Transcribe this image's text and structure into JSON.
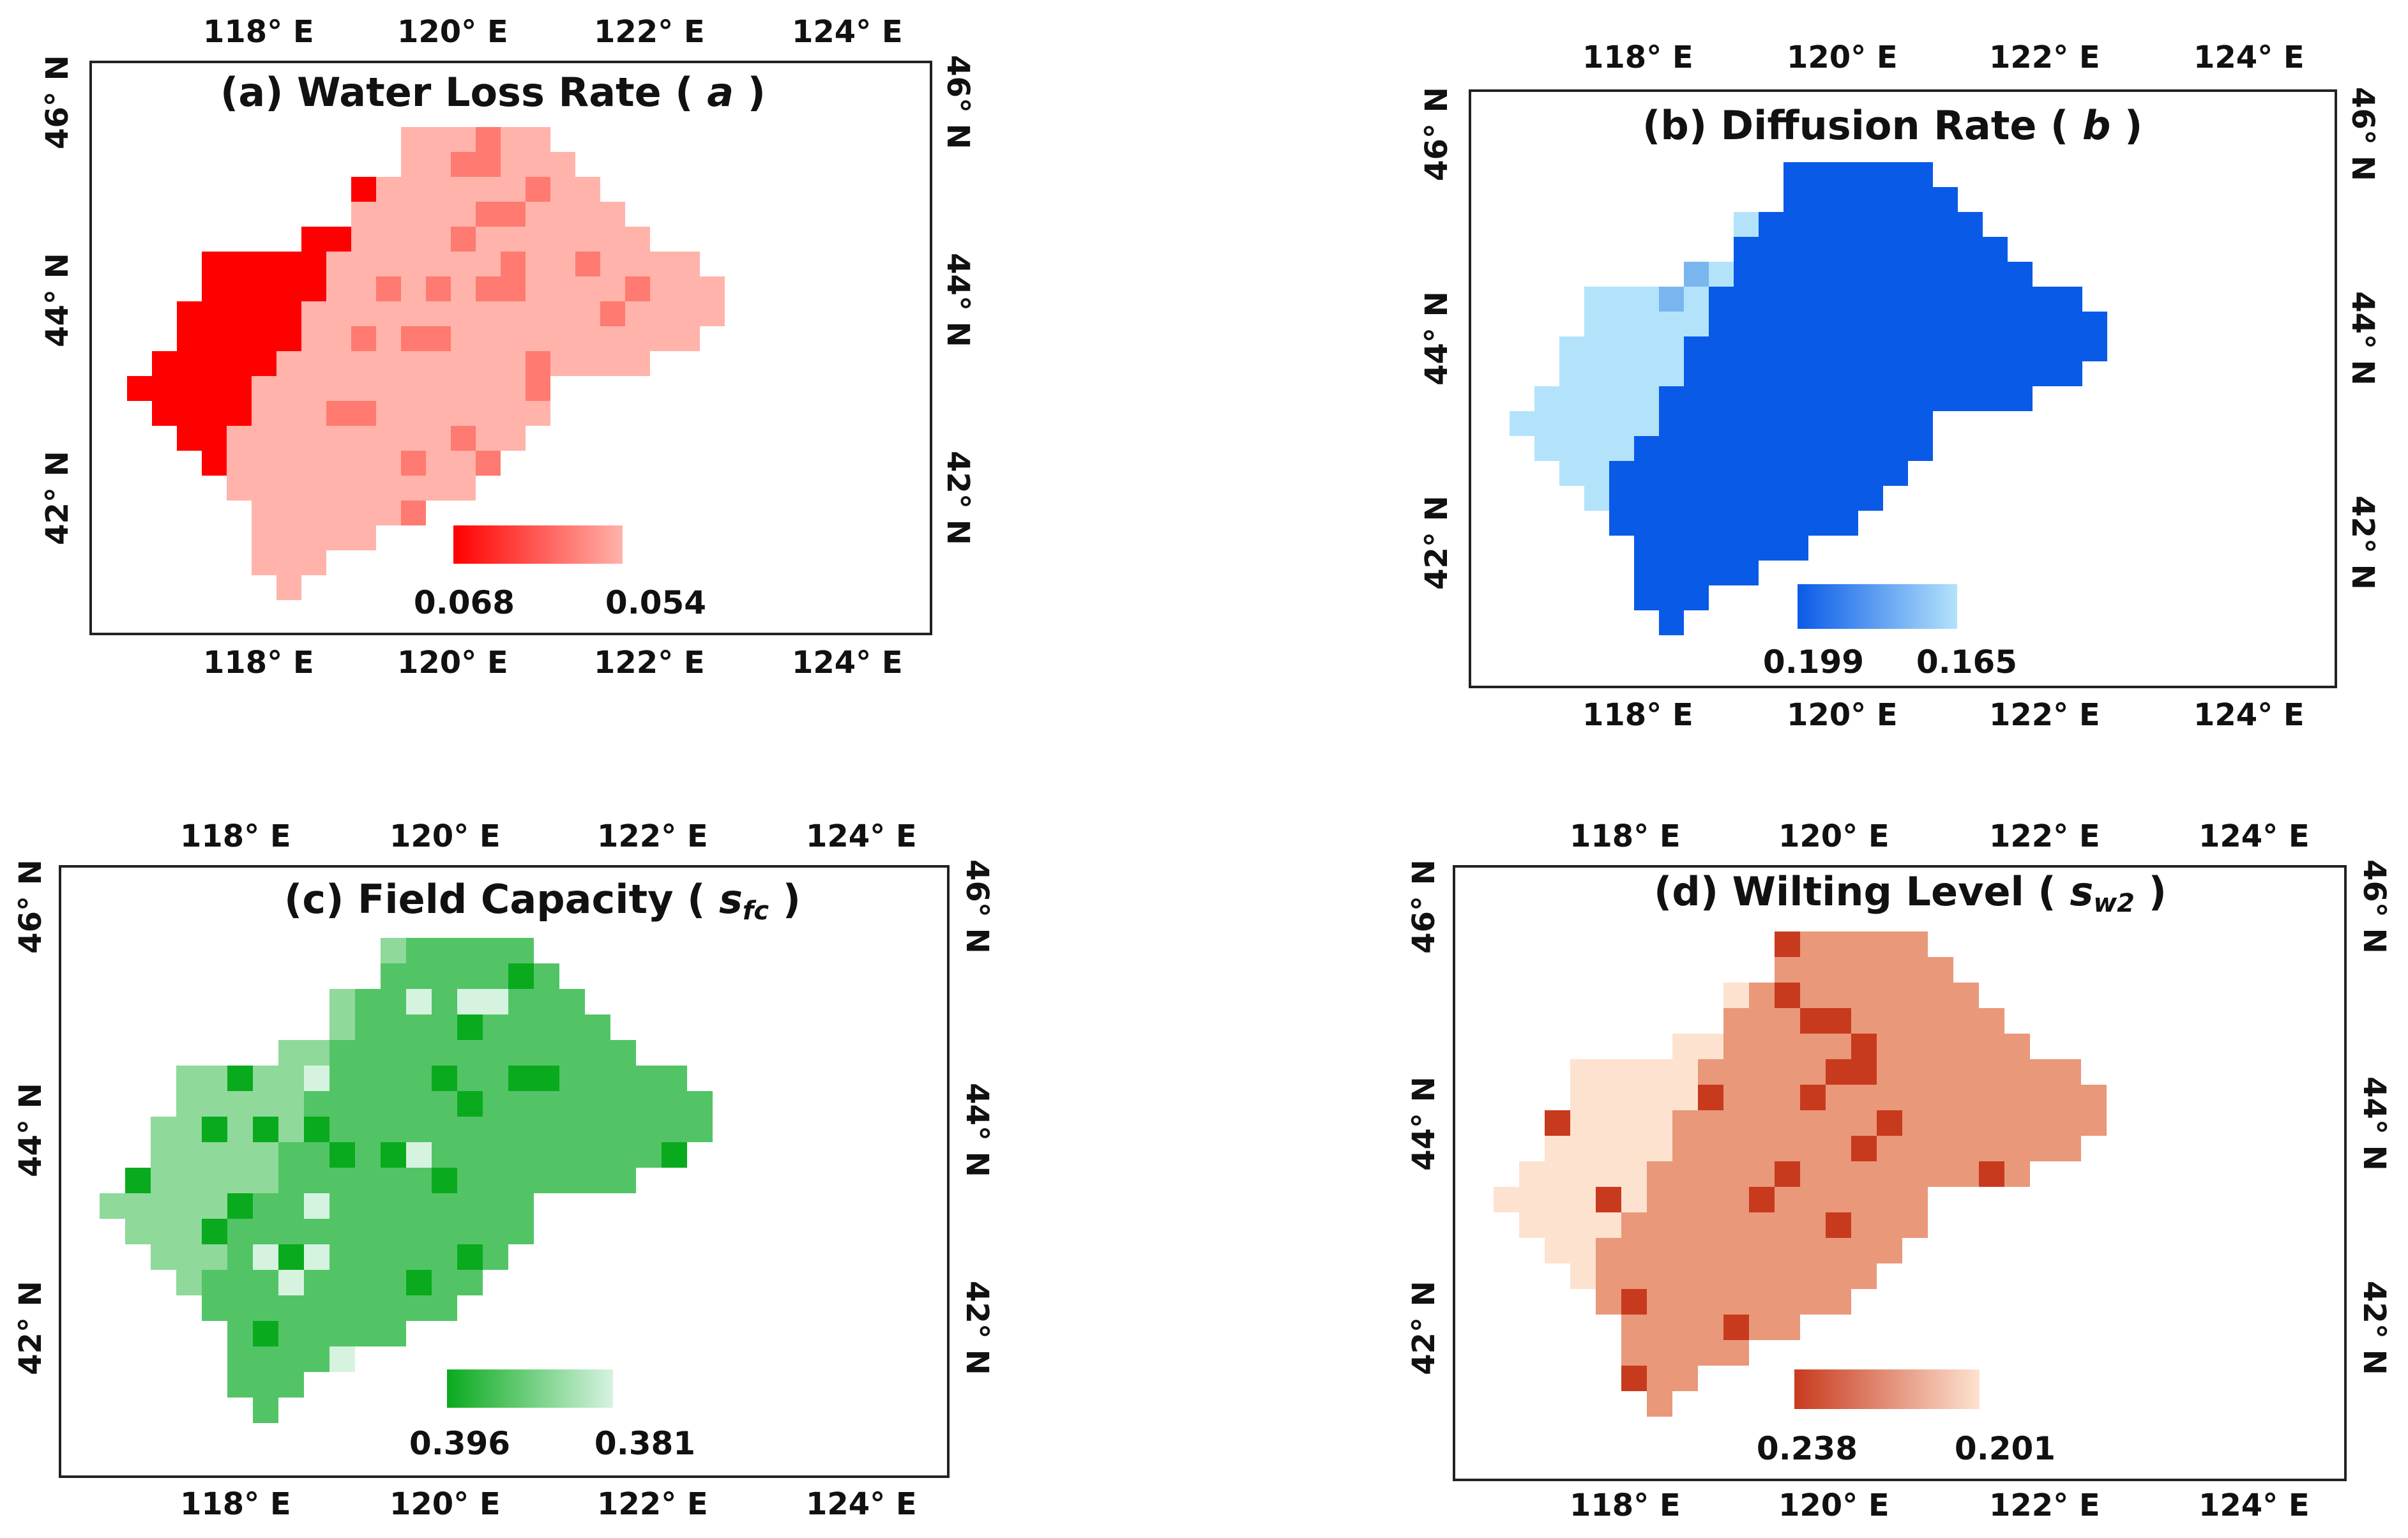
{
  "panels": [
    {
      "id": "a",
      "title_prefix": "(a) Water Loss Rate (",
      "symbol": "a",
      "subscript": "",
      "title_suffix": ")",
      "legend_high": "0.068",
      "legend_low": "0.054",
      "color_high": "#ff0000",
      "color_low": "#ffb3aa",
      "color_mid": "#ff7a70",
      "top_ticks": [
        "118° E",
        "120° E",
        "122° E",
        "124° E"
      ],
      "bottom_ticks": [
        "118° E",
        "120° E",
        "122° E",
        "124° E"
      ],
      "left_ticks": [
        "46° N",
        "44° N",
        "42° N"
      ],
      "right_ticks": [
        "46° N",
        "44° N",
        "42° N"
      ]
    },
    {
      "id": "b",
      "title_prefix": "(b) Diffusion Rate (",
      "symbol": "b",
      "subscript": "",
      "title_suffix": ")",
      "legend_high": "0.199",
      "legend_low": "0.165",
      "color_high": "#0a5ae8",
      "color_low": "#b3e3fb",
      "color_mid": "#79b6f0",
      "top_ticks": [
        "118° E",
        "120° E",
        "122° E",
        "124° E"
      ],
      "bottom_ticks": [
        "118° E",
        "120° E",
        "122° E",
        "124° E"
      ],
      "left_ticks": [
        "46° N",
        "44° N",
        "42° N"
      ],
      "right_ticks": [
        "46° N",
        "44° N",
        "42° N"
      ]
    },
    {
      "id": "c",
      "title_prefix": "(c) Field Capacity (",
      "symbol": "s",
      "subscript": "fc",
      "title_suffix": ")",
      "legend_high": "0.396",
      "legend_low": "0.381",
      "color_high": "#0aaa1e",
      "color_low": "#d6f3e0",
      "color_mid": "#52c466",
      "color_light": "#8fd99a",
      "top_ticks": [
        "118° E",
        "120° E",
        "122° E",
        "124° E"
      ],
      "bottom_ticks": [
        "118° E",
        "120° E",
        "122° E",
        "124° E"
      ],
      "left_ticks": [
        "46° N",
        "44° N",
        "42° N"
      ],
      "right_ticks": [
        "46° N",
        "44° N",
        "42° N"
      ]
    },
    {
      "id": "d",
      "title_prefix": "(d) Wilting Level (",
      "symbol": "s",
      "subscript": "w2",
      "title_suffix": ")",
      "legend_high": "0.238",
      "legend_low": "0.201",
      "color_high": "#c83a1e",
      "color_low": "#fde2d0",
      "color_mid": "#e9987a",
      "top_ticks": [
        "118° E",
        "120° E",
        "122° E",
        "124° E"
      ],
      "bottom_ticks": [
        "118° E",
        "120° E",
        "122° E",
        "124° E"
      ],
      "left_ticks": [
        "46° N",
        "44° N",
        "42° N"
      ],
      "right_ticks": [
        "46° N",
        "44° N",
        "42° N"
      ]
    }
  ]
}
